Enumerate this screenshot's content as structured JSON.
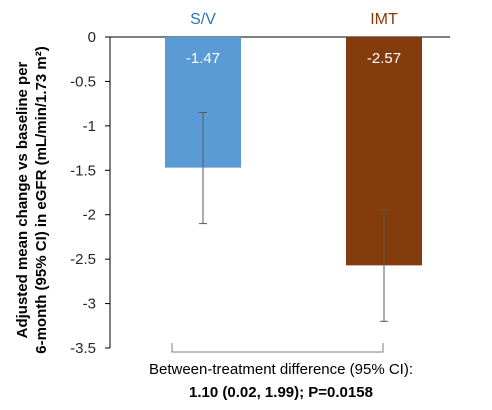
{
  "chart_data": {
    "type": "bar",
    "categories": [
      "S/V",
      "IMT"
    ],
    "values": [
      -1.47,
      -2.57
    ],
    "error_bars": [
      {
        "lower": -2.1,
        "upper": -0.85
      },
      {
        "lower": -3.2,
        "upper": -1.95
      }
    ],
    "data_labels": [
      "-1.47",
      "-2.57"
    ],
    "ylabel_line1": "Adjusted mean change vs baseline per",
    "ylabel_line2": "6-month (95% CI) in eGFR (mL/min/1.73 m²)",
    "ylim": [
      -3.5,
      0
    ],
    "yticks": [
      0,
      -0.5,
      -1,
      -1.5,
      -2,
      -2.5,
      -3,
      -3.5
    ],
    "ytick_labels": [
      "0",
      "-0.5",
      "-1",
      "-1.5",
      "-2",
      "-2.5",
      "-3",
      "-3.5"
    ],
    "grid": false,
    "colors": {
      "S/V": "#5b9bd5",
      "IMT": "#843c0c",
      "S/V_label": "#2e75b6",
      "IMT_label": "#843c0c",
      "error_bar": "#595959",
      "axis": "#000000"
    },
    "annotation": {
      "line1": "Between-treatment difference (95% CI):",
      "line2": "1.10 (0.02, 1.99); P=0.0158"
    }
  }
}
